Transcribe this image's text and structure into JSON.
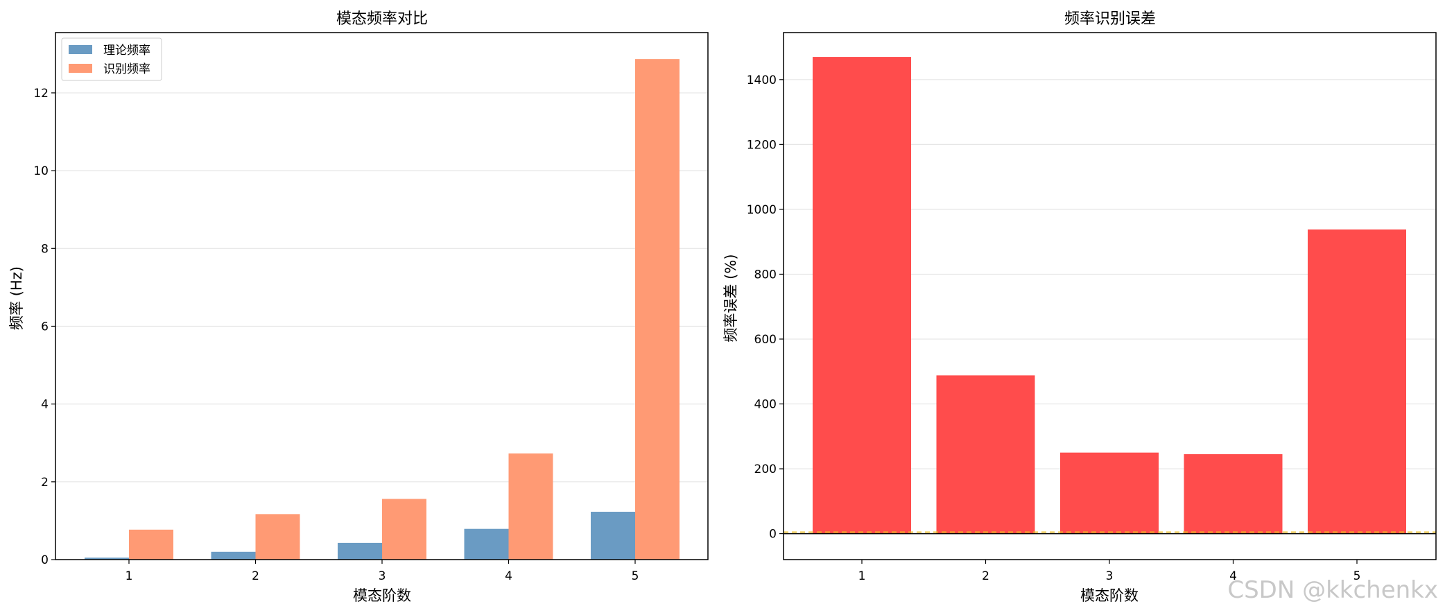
{
  "watermark": "CSDN @kkchenkx",
  "chart_data": [
    {
      "type": "bar",
      "title": "模态频率对比",
      "xlabel": "模态阶数",
      "ylabel": "频率 (Hz)",
      "categories": [
        "1",
        "2",
        "3",
        "4",
        "5"
      ],
      "series": [
        {
          "name": "理论频率",
          "color": "#6a9bc3",
          "values": [
            0.05,
            0.2,
            0.43,
            0.79,
            1.23
          ]
        },
        {
          "name": "识别频率",
          "color": "#ff9a74",
          "values": [
            0.77,
            1.17,
            1.56,
            2.73,
            12.87
          ]
        }
      ],
      "ylim": [
        0,
        13.55
      ],
      "yticks": [
        0,
        2,
        4,
        6,
        8,
        10,
        12
      ],
      "grid": "y",
      "legend": "top-left"
    },
    {
      "type": "bar",
      "title": "频率识别误差",
      "xlabel": "模态阶数",
      "ylabel": "频率误差 (%)",
      "categories": [
        "1",
        "2",
        "3",
        "4",
        "5"
      ],
      "series": [
        {
          "color": "#ff4c4c",
          "values": [
            1470,
            488,
            250,
            245,
            938
          ]
        }
      ],
      "ylim": [
        -80,
        1545
      ],
      "yticks": [
        0,
        200,
        400,
        600,
        800,
        1000,
        1200,
        1400
      ],
      "grid": "y",
      "reference_lines": [
        {
          "y": 0,
          "color": "#000000",
          "style": "solid"
        },
        {
          "y": 5,
          "color": "#f0c020",
          "style": "dashed"
        }
      ]
    }
  ]
}
